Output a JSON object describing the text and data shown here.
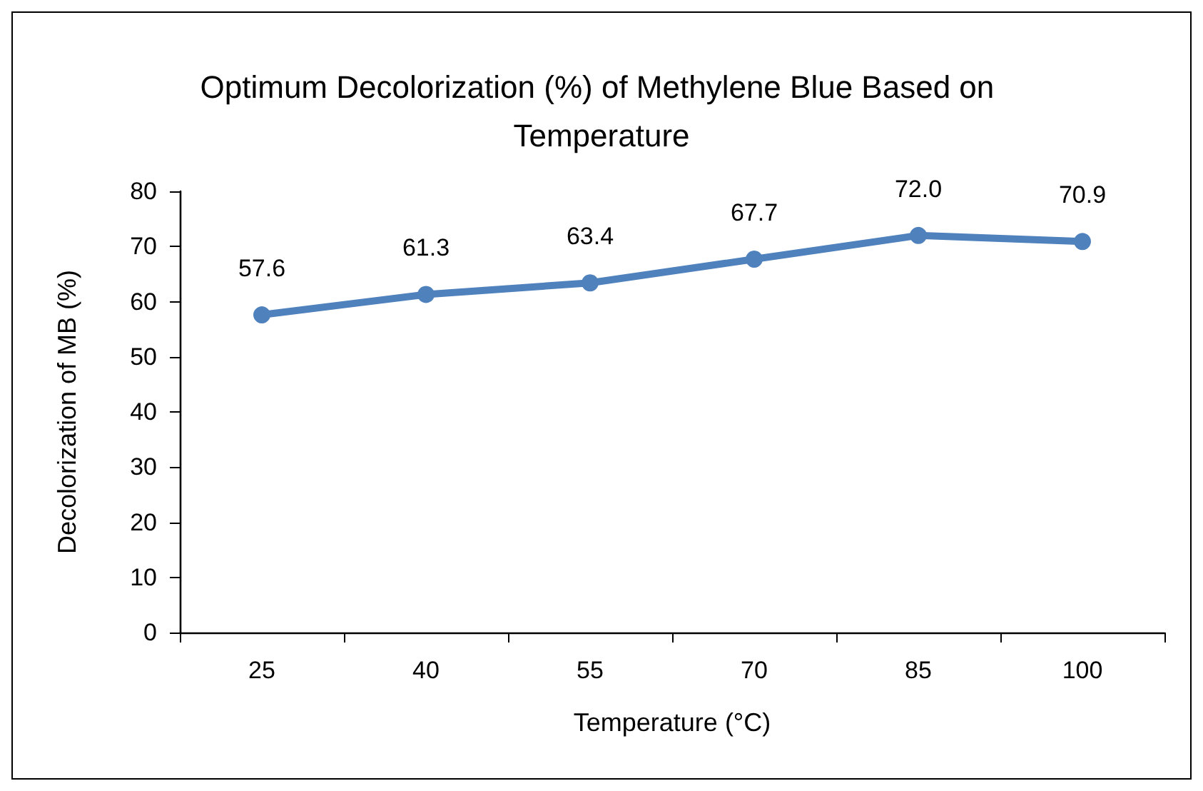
{
  "chart_data": {
    "type": "line",
    "title": "Optimum Decolorization (%) of Methylene Blue Based on Temperature",
    "xlabel": "Temperature (°C)",
    "ylabel": "Decolorization of MB (%)",
    "categories": [
      "25",
      "40",
      "55",
      "70",
      "85",
      "100"
    ],
    "series": [
      {
        "color": "#4f81bd",
        "values": [
          57.6,
          61.3,
          63.4,
          67.7,
          72.0,
          70.9
        ],
        "value_labels": [
          "57.6",
          "61.3",
          "63.4",
          "67.7",
          "72.0",
          "70.9"
        ]
      }
    ],
    "ylim": [
      0,
      80
    ],
    "yticks": [
      0,
      10,
      20,
      30,
      40,
      50,
      60,
      70,
      80
    ],
    "grid": false,
    "marker": "circle",
    "line_style": "solid"
  }
}
